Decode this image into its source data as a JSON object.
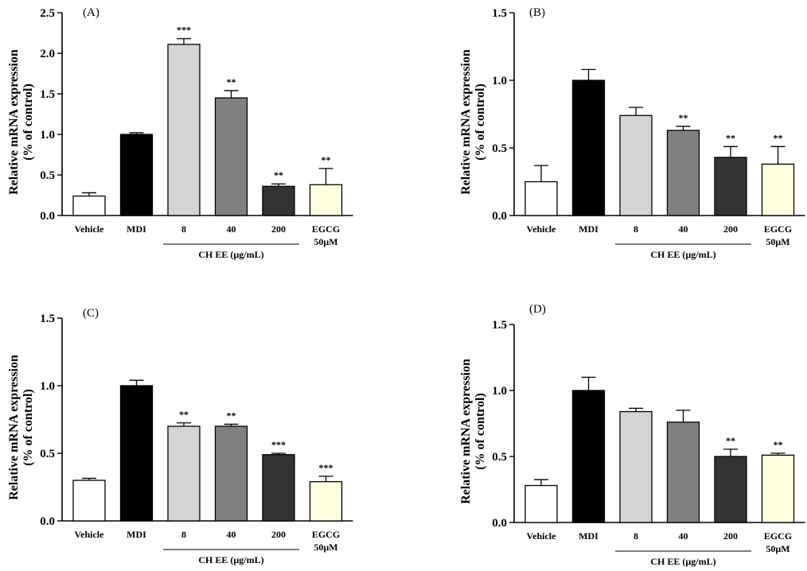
{
  "colors": {
    "bars": [
      "#ffffff",
      "#000000",
      "#d4d4d4",
      "#808080",
      "#333333",
      "#ffffe0"
    ],
    "stroke": "#000000"
  },
  "chart_data": [
    {
      "type": "bar",
      "panel_label": "(A)",
      "ylabel": [
        "Relative mRNA expression",
        "(% of control)"
      ],
      "categories": [
        "Vehicle",
        "MDI",
        "8",
        "40",
        "200",
        "EGCG 50µM"
      ],
      "values": [
        0.24,
        1.0,
        2.11,
        1.45,
        0.36,
        0.38
      ],
      "errors": [
        0.04,
        0.02,
        0.07,
        0.09,
        0.03,
        0.2
      ],
      "significance": [
        "",
        "",
        "***",
        "**",
        "**",
        "**"
      ],
      "ylim": [
        0,
        2.5
      ],
      "yticks": [
        "0.0",
        "0.5",
        "1.0",
        "1.5",
        "2.0",
        "2.5"
      ],
      "group_label": "CH EE (µg/mL)"
    },
    {
      "type": "bar",
      "panel_label": "(B)",
      "ylabel": [
        "Relative mRNA expression",
        "(% of control)"
      ],
      "categories": [
        "Vehicle",
        "MDI",
        "8",
        "40",
        "200",
        "EGCG 50µM"
      ],
      "values": [
        0.25,
        1.0,
        0.74,
        0.63,
        0.43,
        0.38
      ],
      "errors": [
        0.12,
        0.08,
        0.06,
        0.03,
        0.08,
        0.13
      ],
      "significance": [
        "",
        "",
        "",
        "**",
        "**",
        "**"
      ],
      "ylim": [
        0,
        1.5
      ],
      "yticks": [
        "0.0",
        "0.5",
        "1.0",
        "1.5"
      ],
      "group_label": "CH EE (µg/mL)"
    },
    {
      "type": "bar",
      "panel_label": "(C)",
      "ylabel": [
        "Relative mRNA expression",
        "(% of control)"
      ],
      "categories": [
        "Vehicle",
        "MDI",
        "8",
        "40",
        "200",
        "EGCG 50µM"
      ],
      "values": [
        0.3,
        1.0,
        0.7,
        0.7,
        0.49,
        0.29
      ],
      "errors": [
        0.015,
        0.04,
        0.025,
        0.015,
        0.01,
        0.04
      ],
      "significance": [
        "",
        "",
        "**",
        "**",
        "***",
        "***"
      ],
      "ylim": [
        0,
        1.5
      ],
      "yticks": [
        "0.0",
        "0.5",
        "1.0",
        "1.5"
      ],
      "group_label": "CH EE (µg/mL)"
    },
    {
      "type": "bar",
      "panel_label": "(D)",
      "ylabel": [
        "Relative mRNA expression",
        "(% of control)"
      ],
      "categories": [
        "Vehicle",
        "MDI",
        "8",
        "40",
        "200",
        "EGCG 50µM"
      ],
      "values": [
        0.28,
        1.0,
        0.84,
        0.76,
        0.5,
        0.51
      ],
      "errors": [
        0.045,
        0.1,
        0.025,
        0.09,
        0.055,
        0.015
      ],
      "significance": [
        "",
        "",
        "",
        "",
        "**",
        "**"
      ],
      "ylim": [
        0,
        1.5
      ],
      "yticks": [
        "0.0",
        "0.5",
        "1.0",
        "1.5"
      ],
      "group_label": "CH EE (µg/mL)"
    }
  ]
}
